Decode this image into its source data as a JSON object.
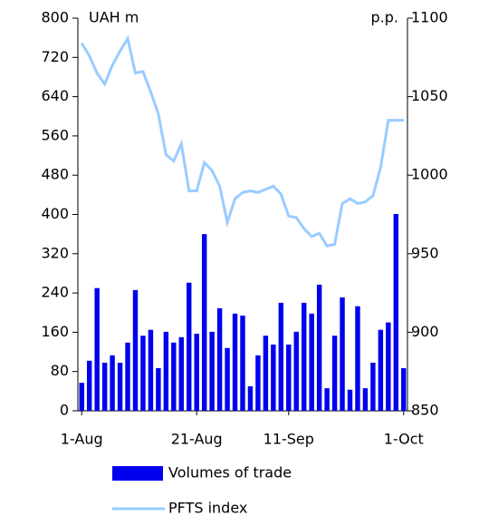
{
  "chart_data": {
    "type": "bar_line",
    "y_label": "UAH m",
    "y2_label": "p.p.",
    "categories": [
      "1-Aug",
      null,
      null,
      null,
      null,
      null,
      null,
      null,
      null,
      null,
      null,
      null,
      null,
      null,
      null,
      "21-Aug",
      null,
      null,
      null,
      null,
      null,
      null,
      null,
      null,
      null,
      null,
      null,
      "11-Sep",
      null,
      null,
      null,
      null,
      null,
      null,
      null,
      null,
      null,
      null,
      null,
      null,
      null,
      null,
      "1-Oct"
    ],
    "series": [
      {
        "name": "Volumes of trade",
        "color": "#0000ee",
        "type": "bar",
        "axis": "y",
        "values": [
          57,
          102,
          250,
          98,
          113,
          98,
          139,
          246,
          153,
          165,
          87,
          161,
          139,
          150,
          261,
          157,
          360,
          161,
          209,
          128,
          198,
          194,
          50,
          113,
          153,
          135,
          220,
          135,
          161,
          220,
          198,
          257,
          46,
          153,
          231,
          43,
          213,
          46,
          98,
          165,
          180,
          401,
          87
        ]
      },
      {
        "name": "PFTS index",
        "color": "#99ccff",
        "type": "line",
        "axis": "y2",
        "values": [
          1084,
          1076,
          1065,
          1058,
          1070,
          1079,
          1087,
          1065,
          1066,
          1053,
          1039,
          1013,
          1009,
          1020,
          990,
          990,
          1008,
          1003,
          993,
          970,
          985,
          989,
          990,
          989,
          991,
          993,
          988,
          974,
          973,
          966,
          961,
          963,
          955,
          956,
          982,
          985,
          982,
          983,
          987,
          1005,
          1035,
          1035,
          1035
        ]
      }
    ],
    "ylim": [
      0,
      800
    ],
    "yticks": [
      0,
      80,
      160,
      240,
      320,
      400,
      480,
      560,
      640,
      720,
      800
    ],
    "y2lim": [
      850,
      1100
    ],
    "y2ticks": [
      850,
      900,
      950,
      1000,
      1050,
      1100
    ],
    "legend": "bottom"
  }
}
